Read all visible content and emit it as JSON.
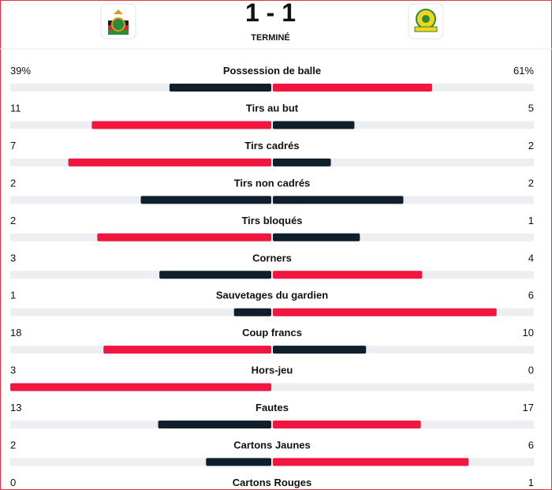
{
  "header": {
    "score": "1 - 1",
    "status": "TERMINÉ"
  },
  "stats": [
    {
      "label": "Possession de balle",
      "home": {
        "value": 39,
        "label": "39%"
      },
      "away": {
        "value": 61,
        "label": "61%"
      }
    },
    {
      "label": "Tirs au but",
      "home": 11,
      "away": 5
    },
    {
      "label": "Tirs cadrés",
      "home": 7,
      "away": 2
    },
    {
      "label": "Tirs non cadrés",
      "home": 2,
      "away": 2
    },
    {
      "label": "Tirs bloqués",
      "home": 2,
      "away": 1
    },
    {
      "label": "Corners",
      "home": 3,
      "away": 4
    },
    {
      "label": "Sauvetages du gardien",
      "home": 1,
      "away": 6
    },
    {
      "label": "Coup francs",
      "home": 18,
      "away": 10
    },
    {
      "label": "Hors-jeu",
      "home": 3,
      "away": 0
    },
    {
      "label": "Fautes",
      "home": 13,
      "away": 17
    },
    {
      "label": "Cartons Jaunes",
      "home": 2,
      "away": 6
    },
    {
      "label": "Cartons Rouges",
      "home": 0,
      "away": 1
    }
  ]
}
